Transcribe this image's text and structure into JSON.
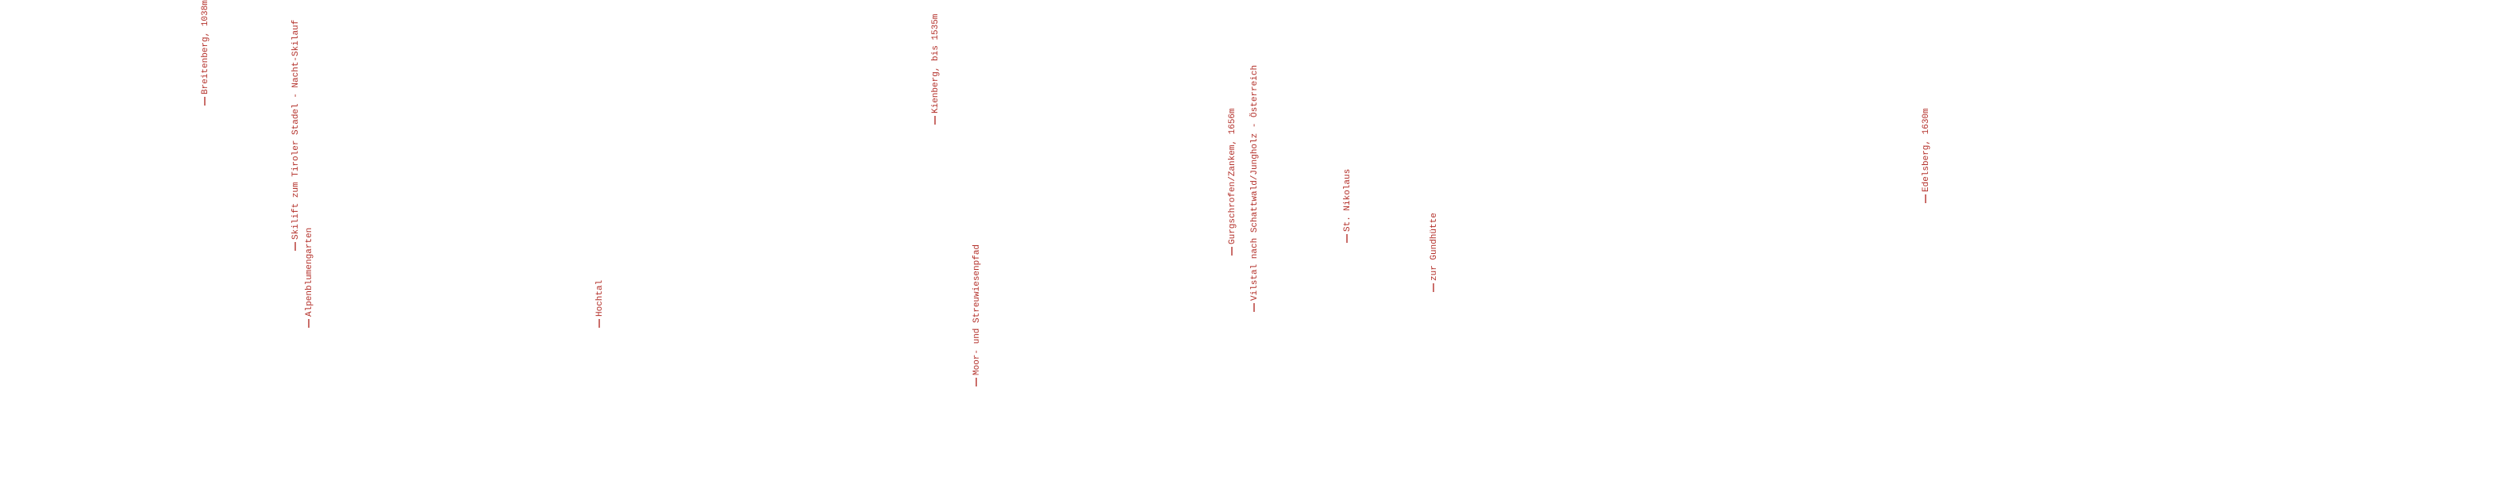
{
  "labels": [
    {
      "text": "Breitenberg, 1038m"
    },
    {
      "text": "Skilift zum Tiroler Stadel - Nacht-Skilauf"
    },
    {
      "text": "Alpenblumengarten"
    },
    {
      "text": "Hochtal"
    },
    {
      "text": "Kienberg, bis 1535m"
    },
    {
      "text": "Moor- und Streuwiesenpfad"
    },
    {
      "text": "Gurgschrofen/Zankem, 1656m"
    },
    {
      "text": "Vilstal nach Schattwald/Jungholz - Österreich"
    },
    {
      "text": "St. Nikolaus"
    },
    {
      "text": "zur Gundhütte"
    },
    {
      "text": "Edelsberg, 1630m"
    }
  ]
}
